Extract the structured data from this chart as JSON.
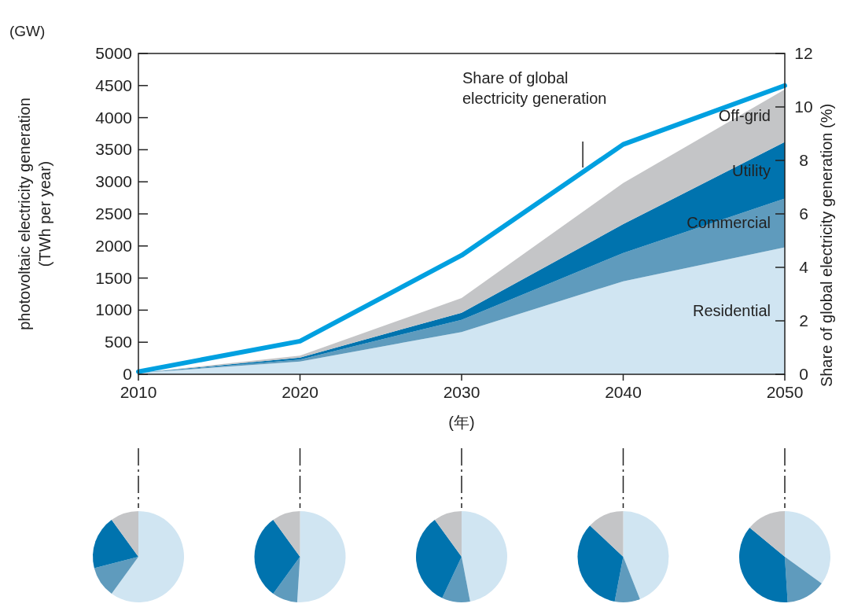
{
  "chart_data": [
    {
      "type": "area",
      "stacked": true,
      "x": [
        2010,
        2020,
        2030,
        2040,
        2050
      ],
      "xlim": [
        2010,
        2050
      ],
      "xticks": [
        2010,
        2020,
        2030,
        2040,
        2050
      ],
      "ylim": [
        0,
        5000
      ],
      "yticks": [
        0,
        500,
        1000,
        1500,
        2000,
        2500,
        3000,
        3500,
        4000,
        4500,
        5000
      ],
      "y2lim": [
        0,
        12
      ],
      "y2ticks": [
        0,
        2,
        4,
        6,
        8,
        10,
        12
      ],
      "xlabel": "(年)",
      "ylabel": "photovoltaic electricity generation\n(TWh per year)",
      "y2label": "Share of global electricity generation (%)",
      "annotations": [
        "(GW)"
      ],
      "grid": false,
      "legend": false,
      "series": [
        {
          "name": "Residential",
          "color": "#d0e5f2",
          "values": [
            20,
            200,
            660,
            1450,
            1980
          ]
        },
        {
          "name": "Commercial",
          "color": "#5f9bbd",
          "values": [
            0,
            30,
            190,
            440,
            760
          ]
        },
        {
          "name": "Utility",
          "color": "#0073ae",
          "values": [
            0,
            30,
            110,
            450,
            880
          ]
        },
        {
          "name": "Off-grid",
          "color": "#c4c5c7",
          "values": [
            0,
            30,
            230,
            640,
            820
          ]
        },
        {
          "type": "line",
          "axis": "y2",
          "name": "Share of global electricity generation",
          "color": "#00a0e0",
          "values": [
            0.1,
            1.24,
            4.45,
            8.6,
            10.8
          ]
        }
      ]
    },
    {
      "type": "pie",
      "categories": [
        null,
        null,
        null,
        null
      ],
      "values": [
        60,
        11,
        19,
        10
      ],
      "colors": [
        "#d0e5f2",
        "#5f9bbd",
        "#0073ae",
        "#c4c5c7"
      ]
    },
    {
      "type": "pie",
      "categories": [
        null,
        null,
        null,
        null
      ],
      "values": [
        51,
        9,
        30,
        10
      ],
      "colors": [
        "#d0e5f2",
        "#5f9bbd",
        "#0073ae",
        "#c4c5c7"
      ]
    },
    {
      "type": "pie",
      "categories": [
        null,
        null,
        null,
        null
      ],
      "values": [
        47,
        10,
        33,
        10
      ],
      "colors": [
        "#d0e5f2",
        "#5f9bbd",
        "#0073ae",
        "#c4c5c7"
      ]
    },
    {
      "type": "pie",
      "categories": [
        null,
        null,
        null,
        null
      ],
      "values": [
        44,
        9,
        34,
        13
      ],
      "colors": [
        "#d0e5f2",
        "#5f9bbd",
        "#0073ae",
        "#c4c5c7"
      ]
    },
    {
      "type": "pie",
      "categories": [
        null,
        null,
        null,
        null
      ],
      "values": [
        35,
        14,
        37,
        14
      ],
      "colors": [
        "#d0e5f2",
        "#5f9bbd",
        "#0073ae",
        "#c4c5c7"
      ]
    }
  ]
}
